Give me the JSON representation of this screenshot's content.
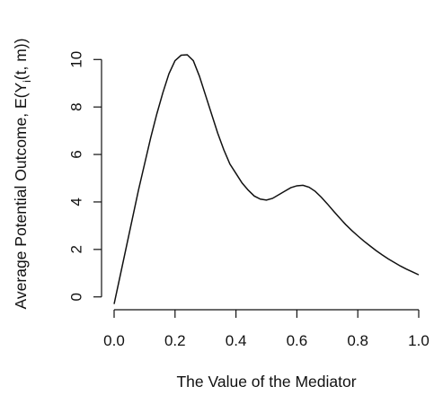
{
  "chart_data": {
    "type": "line",
    "title": "",
    "xlabel": "The Value of the Mediator",
    "ylabel": {
      "before_subscript": "Average Potential Outcome, E(Y",
      "subscript": "i",
      "after_subscript": "(t, m))"
    },
    "xlim": [
      0,
      1
    ],
    "ylim": [
      -0.2,
      10.2
    ],
    "x_ticks": [
      0,
      0.2,
      0.4,
      0.6,
      0.8,
      1
    ],
    "x_tick_labels": [
      "0.0",
      "0.2",
      "0.4",
      "0.6",
      "0.8",
      "1.0"
    ],
    "y_ticks": [
      0,
      2,
      4,
      6,
      8,
      10
    ],
    "y_tick_labels": [
      "0",
      "2",
      "4",
      "6",
      "8",
      "10"
    ],
    "grid": false,
    "series": [
      {
        "x": [
          0,
          0.02,
          0.04,
          0.06,
          0.08,
          0.1,
          0.12,
          0.14,
          0.16,
          0.18,
          0.2,
          0.22,
          0.24,
          0.26,
          0.28,
          0.3,
          0.32,
          0.34,
          0.36,
          0.38,
          0.4,
          0.42,
          0.44,
          0.46,
          0.48,
          0.5,
          0.52,
          0.54,
          0.56,
          0.58,
          0.6,
          0.62,
          0.64,
          0.66,
          0.68,
          0.7,
          0.72,
          0.74,
          0.76,
          0.78,
          0.8,
          0.82,
          0.84,
          0.86,
          0.88,
          0.9,
          0.92,
          0.94,
          0.96,
          0.98,
          1
        ],
        "y": [
          -0.3,
          0.9,
          2.1,
          3.3,
          4.5,
          5.6,
          6.7,
          7.7,
          8.6,
          9.4,
          9.95,
          10.18,
          10.2,
          9.95,
          9.3,
          8.5,
          7.7,
          6.9,
          6.2,
          5.6,
          5.2,
          4.8,
          4.5,
          4.25,
          4.12,
          4.08,
          4.15,
          4.3,
          4.45,
          4.6,
          4.68,
          4.7,
          4.62,
          4.45,
          4.2,
          3.92,
          3.62,
          3.33,
          3.05,
          2.8,
          2.57,
          2.35,
          2.15,
          1.95,
          1.77,
          1.6,
          1.45,
          1.3,
          1.17,
          1.05,
          0.93
        ]
      }
    ]
  }
}
